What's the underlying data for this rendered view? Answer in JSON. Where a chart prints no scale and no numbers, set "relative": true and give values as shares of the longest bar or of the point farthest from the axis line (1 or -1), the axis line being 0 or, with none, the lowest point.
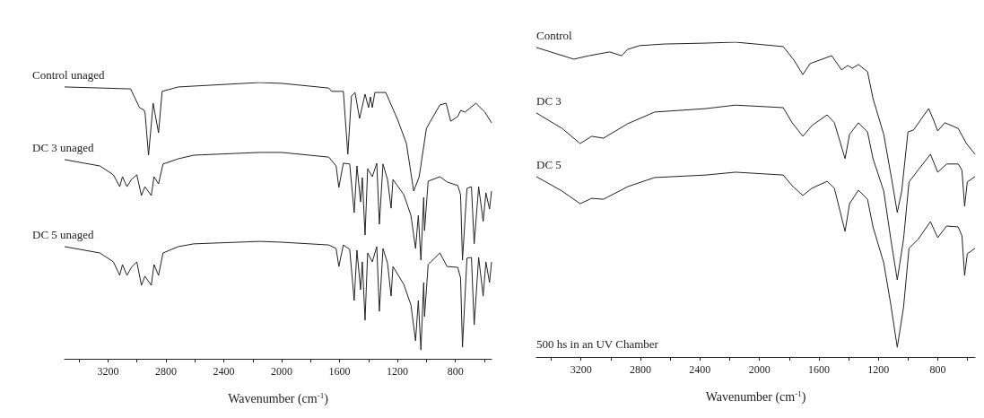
{
  "chart_data": [
    {
      "type": "line",
      "xlabel": "Wavenumber (cm$^{-1}$)",
      "relative": true,
      "xlim": [
        3500,
        550
      ],
      "xticks": [
        {
          "value": 3400,
          "label": null
        },
        3200,
        {
          "value": 3000,
          "label": null
        },
        2800,
        {
          "value": 2600,
          "label": null
        },
        2400,
        {
          "value": 2200,
          "label": null
        },
        2000,
        {
          "value": 1800,
          "label": null
        },
        1600,
        {
          "value": 1400,
          "label": null
        },
        1200,
        {
          "value": 1000,
          "label": null
        },
        800,
        {
          "value": 600,
          "label": null
        }
      ],
      "series": [
        {
          "name": "Control unaged",
          "color": "#222222",
          "x": [
            3500,
            3044,
            2982,
            2951,
            2944,
            2920,
            2888,
            2851,
            2826,
            2714,
            2153,
            2000,
            1674,
            1655,
            1574,
            1543,
            1518,
            1493,
            1462,
            1424,
            1400,
            1387,
            1374,
            1356,
            1281,
            1200,
            1138,
            1088,
            1050,
            1000,
            907,
            864,
            832,
            783,
            764,
            733,
            658,
            596,
            550
          ],
          "values": [
            0.984,
            0.977,
            0.909,
            0.9,
            0.89,
            0.737,
            0.925,
            0.818,
            0.968,
            0.984,
            1.0,
            0.997,
            0.98,
            0.968,
            0.968,
            0.74,
            0.951,
            0.964,
            0.87,
            0.958,
            0.909,
            0.948,
            0.909,
            0.964,
            0.964,
            0.867,
            0.779,
            0.607,
            0.659,
            0.834,
            0.919,
            0.925,
            0.86,
            0.877,
            0.899,
            0.893,
            0.925,
            0.893,
            0.854
          ]
        },
        {
          "name": "DC 3 unaged",
          "color": "#222222",
          "x": [
            3500,
            3256,
            3163,
            3119,
            3100,
            3069,
            3038,
            3001,
            2969,
            2945,
            2901,
            2882,
            2851,
            2820,
            2714,
            2608,
            2153,
            2000,
            1674,
            1624,
            1605,
            1574,
            1530,
            1499,
            1480,
            1455,
            1443,
            1424,
            1406,
            1374,
            1343,
            1325,
            1300,
            1269,
            1244,
            1231,
            1156,
            1107,
            1075,
            1056,
            1038,
            1019,
            1013,
            988,
            907,
            857,
            783,
            764,
            751,
            720,
            689,
            670,
            639,
            608,
            589,
            564,
            550
          ],
          "values": [
            0.721,
            0.698,
            0.666,
            0.623,
            0.659,
            0.623,
            0.649,
            0.666,
            0.591,
            0.623,
            0.591,
            0.659,
            0.633,
            0.705,
            0.724,
            0.737,
            0.747,
            0.747,
            0.73,
            0.698,
            0.62,
            0.708,
            0.705,
            0.529,
            0.698,
            0.568,
            0.656,
            0.448,
            0.688,
            0.659,
            0.708,
            0.487,
            0.705,
            0.649,
            0.545,
            0.649,
            0.594,
            0.519,
            0.399,
            0.519,
            0.357,
            0.584,
            0.464,
            0.643,
            0.659,
            0.64,
            0.627,
            0.594,
            0.357,
            0.617,
            0.623,
            0.416,
            0.623,
            0.497,
            0.601,
            0.542,
            0.607
          ]
        },
        {
          "name": "DC 5 unaged",
          "color": "#222222",
          "x": [
            3500,
            3256,
            3163,
            3119,
            3100,
            3069,
            3038,
            3001,
            2969,
            2945,
            2901,
            2882,
            2851,
            2820,
            2714,
            2608,
            2153,
            2000,
            1674,
            1624,
            1605,
            1574,
            1530,
            1499,
            1480,
            1455,
            1443,
            1424,
            1406,
            1374,
            1343,
            1325,
            1300,
            1269,
            1244,
            1231,
            1156,
            1107,
            1075,
            1056,
            1038,
            1019,
            1013,
            988,
            907,
            857,
            783,
            764,
            751,
            720,
            689,
            670,
            639,
            608,
            589,
            564,
            550
          ],
          "values": [
            0.406,
            0.383,
            0.351,
            0.302,
            0.341,
            0.302,
            0.331,
            0.351,
            0.266,
            0.299,
            0.266,
            0.341,
            0.302,
            0.383,
            0.406,
            0.416,
            0.425,
            0.422,
            0.412,
            0.399,
            0.334,
            0.412,
            0.396,
            0.211,
            0.393,
            0.25,
            0.351,
            0.14,
            0.383,
            0.351,
            0.406,
            0.172,
            0.399,
            0.347,
            0.227,
            0.334,
            0.269,
            0.195,
            0.065,
            0.211,
            0.032,
            0.276,
            0.153,
            0.341,
            0.383,
            0.334,
            0.331,
            0.292,
            0.042,
            0.364,
            0.367,
            0.123,
            0.367,
            0.227,
            0.351,
            0.276,
            0.351
          ]
        }
      ]
    },
    {
      "type": "line",
      "xlabel": "Wavenumber (cm$^{-1}$)",
      "relative": true,
      "xlim": [
        3500,
        550
      ],
      "xticks": [
        {
          "value": 3400,
          "label": null
        },
        3200,
        {
          "value": 3000,
          "label": null
        },
        2800,
        {
          "value": 2600,
          "label": null
        },
        2400,
        {
          "value": 2200,
          "label": null
        },
        2000,
        {
          "value": 1800,
          "label": null
        },
        1600,
        {
          "value": 1400,
          "label": null
        },
        1200,
        {
          "value": 1000,
          "label": null
        },
        800,
        {
          "value": 600,
          "label": null
        }
      ],
      "annotations": [
        "500 hs in an UV Chamber"
      ],
      "series": [
        {
          "name": "Control",
          "color": "#222222",
          "x": [
            3500,
            3248,
            3146,
            3007,
            2928,
            2886,
            2807,
            2644,
            2360,
            2161,
            1840,
            1768,
            1708,
            1659,
            1514,
            1448,
            1406,
            1376,
            1334,
            1273,
            1236,
            1164,
            1103,
            1073,
            1043,
            1001,
            964,
            862,
            831,
            801,
            753,
            663,
            608,
            550
          ],
          "values": [
            0.983,
            0.946,
            0.957,
            0.969,
            0.957,
            0.977,
            0.989,
            0.994,
            0.997,
            1.0,
            0.986,
            0.943,
            0.897,
            0.932,
            0.957,
            0.912,
            0.926,
            0.917,
            0.929,
            0.906,
            0.821,
            0.707,
            0.544,
            0.459,
            0.527,
            0.715,
            0.721,
            0.789,
            0.755,
            0.718,
            0.744,
            0.726,
            0.678,
            0.644
          ]
        },
        {
          "name": "DC 3",
          "color": "#222222",
          "x": [
            3500,
            3327,
            3206,
            3128,
            3049,
            2886,
            2705,
            2360,
            2161,
            1840,
            1780,
            1708,
            1647,
            1545,
            1496,
            1424,
            1394,
            1334,
            1273,
            1236,
            1164,
            1116,
            1073,
            1031,
            994,
            934,
            850,
            801,
            741,
            663,
            638,
            620,
            602,
            550
          ],
          "values": [
            0.775,
            0.726,
            0.678,
            0.701,
            0.695,
            0.741,
            0.778,
            0.789,
            0.8,
            0.792,
            0.744,
            0.701,
            0.735,
            0.769,
            0.744,
            0.63,
            0.707,
            0.744,
            0.715,
            0.63,
            0.527,
            0.373,
            0.245,
            0.373,
            0.556,
            0.593,
            0.644,
            0.587,
            0.613,
            0.613,
            0.593,
            0.479,
            0.556,
            0.573
          ]
        },
        {
          "name": "DC 5",
          "color": "#222222",
          "x": [
            3500,
            3327,
            3206,
            3128,
            3049,
            2886,
            2705,
            2360,
            2161,
            1840,
            1780,
            1708,
            1647,
            1545,
            1496,
            1424,
            1394,
            1334,
            1273,
            1236,
            1164,
            1116,
            1073,
            1031,
            994,
            934,
            850,
            801,
            741,
            663,
            638,
            620,
            602,
            550
          ],
          "values": [
            0.573,
            0.527,
            0.487,
            0.504,
            0.501,
            0.541,
            0.57,
            0.578,
            0.587,
            0.578,
            0.544,
            0.513,
            0.536,
            0.558,
            0.536,
            0.399,
            0.487,
            0.53,
            0.501,
            0.413,
            0.299,
            0.165,
            0.031,
            0.157,
            0.345,
            0.373,
            0.43,
            0.379,
            0.416,
            0.413,
            0.385,
            0.259,
            0.328,
            0.345
          ]
        }
      ]
    }
  ]
}
